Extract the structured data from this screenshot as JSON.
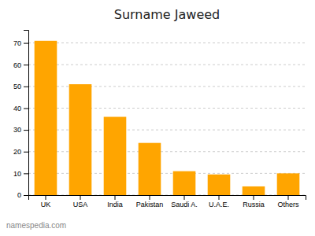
{
  "chart_data": {
    "type": "bar",
    "title": "Surname Jaweed",
    "categories": [
      "UK",
      "USA",
      "India",
      "Pakistan",
      "Saudi A.",
      "U.A.E.",
      "Russia",
      "Others"
    ],
    "values": [
      71,
      51,
      36,
      24,
      11,
      9.5,
      4,
      10
    ],
    "color": "#FFA500",
    "ylim": [
      0,
      76
    ],
    "yticks": [
      0,
      10,
      20,
      30,
      40,
      50,
      60,
      70
    ],
    "grid": true,
    "annotations": [
      "namespedia.com"
    ]
  }
}
